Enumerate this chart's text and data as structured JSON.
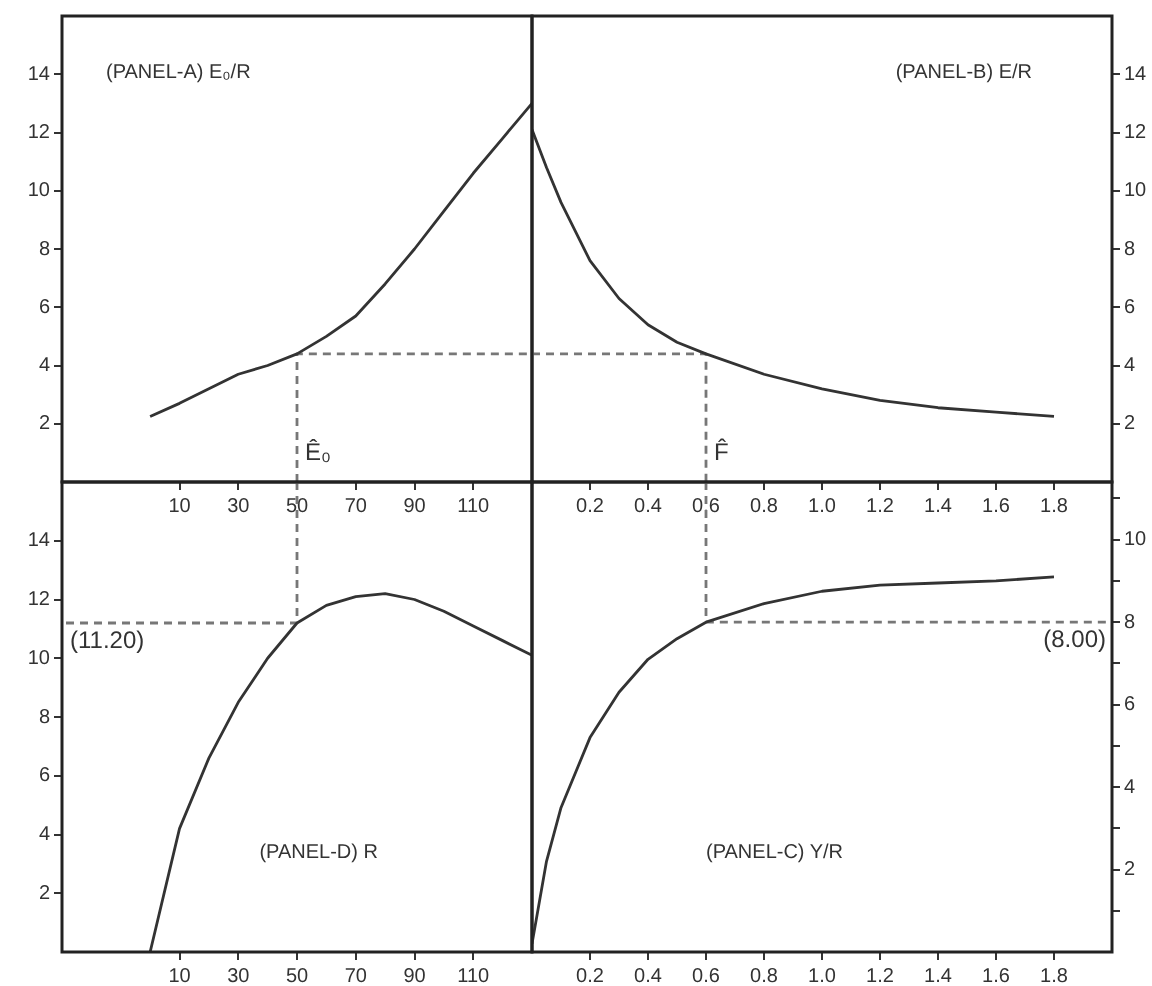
{
  "chart_data": [
    {
      "type": "line",
      "xlim": [
        -30,
        130
      ],
      "ylim": [
        0,
        16
      ],
      "xticks": [
        10,
        30,
        50,
        70,
        90,
        110
      ],
      "yticks": [
        2,
        4,
        6,
        8,
        10,
        12,
        14
      ],
      "grid": false,
      "legend": false,
      "marker": "none",
      "annotations": [
        "(PANEL-A) E₀/R",
        {
          "text": "Ê₀",
          "x": 50,
          "y": 1.6
        }
      ],
      "series": [
        {
          "color": "#333333",
          "x": [
            0,
            10,
            20,
            30,
            40,
            50,
            60,
            70,
            80,
            90,
            100,
            110,
            120,
            130
          ],
          "values": [
            2.25,
            2.7,
            3.2,
            3.7,
            4.0,
            4.4,
            5.0,
            5.7,
            6.8,
            8.0,
            9.3,
            10.6,
            11.8,
            13.0
          ]
        },
        {
          "color": "#777777",
          "line_style": "dashed",
          "x": [
            50,
            50,
            130
          ],
          "values": [
            0,
            4.4,
            4.4
          ]
        }
      ]
    },
    {
      "type": "line",
      "xlim": [
        0,
        2
      ],
      "ylim": [
        0,
        16
      ],
      "xticks": [
        0.2,
        0.4,
        0.6,
        0.8,
        {
          "value": 1,
          "label": "1.0"
        },
        1.2,
        1.4,
        1.6,
        1.8
      ],
      "yticks": [
        2,
        4,
        6,
        8,
        10,
        12,
        14
      ],
      "grid": false,
      "legend": false,
      "marker": "none",
      "annotations": [
        "(PANEL-B) E/R",
        {
          "text": "F̂",
          "x": 0.6,
          "y": 1.6
        }
      ],
      "series": [
        {
          "color": "#333333",
          "x": [
            0,
            0.05,
            0.1,
            0.2,
            0.3,
            0.4,
            0.5,
            0.6,
            0.8,
            1.0,
            1.2,
            1.4,
            1.6,
            1.8
          ],
          "values": [
            12.1,
            10.8,
            9.6,
            7.6,
            6.3,
            5.4,
            4.8,
            4.4,
            3.7,
            3.2,
            2.8,
            2.55,
            2.4,
            2.25
          ]
        },
        {
          "color": "#777777",
          "line_style": "dashed",
          "x": [
            0,
            0.6,
            0.6
          ],
          "values": [
            4.4,
            4.4,
            0
          ]
        }
      ]
    },
    {
      "type": "line",
      "xlim": [
        -30,
        130
      ],
      "ylim": [
        0,
        16
      ],
      "xticks": [
        10,
        30,
        50,
        70,
        90,
        110
      ],
      "yticks": [
        2,
        4,
        6,
        8,
        10,
        12,
        14
      ],
      "grid": false,
      "legend": false,
      "marker": "none",
      "annotations": [
        "(PANEL-D) R",
        {
          "text": "(11.20)",
          "x": -30,
          "y": 11.2
        }
      ],
      "series": [
        {
          "color": "#333333",
          "x": [
            0,
            10,
            20,
            30,
            40,
            50,
            60,
            70,
            80,
            90,
            100,
            110,
            120,
            130
          ],
          "values": [
            0,
            4.2,
            6.6,
            8.5,
            10.0,
            11.2,
            11.8,
            12.1,
            12.2,
            12.0,
            11.6,
            11.1,
            10.6,
            10.1
          ]
        },
        {
          "color": "#777777",
          "line_style": "dashed",
          "x": [
            50,
            50,
            -30
          ],
          "values": [
            16,
            11.2,
            11.2
          ]
        }
      ]
    },
    {
      "type": "line",
      "xlim": [
        0,
        2
      ],
      "ylim": [
        0,
        11.4
      ],
      "xticks": [
        0.2,
        0.4,
        0.6,
        0.8,
        {
          "value": 1,
          "label": "1.0"
        },
        1.2,
        1.4,
        1.6,
        1.8
      ],
      "yticks": [
        {
          "value": 1,
          "label": null
        },
        2,
        {
          "value": 3,
          "label": null
        },
        4,
        {
          "value": 5,
          "label": null
        },
        6,
        {
          "value": 7,
          "label": null
        },
        8,
        {
          "value": 9,
          "label": null
        },
        10,
        {
          "value": 11,
          "label": null
        }
      ],
      "grid": false,
      "legend": false,
      "marker": "none",
      "annotations": [
        "(PANEL-C) Y/R",
        {
          "text": "(8.00)",
          "x": 2,
          "y": 8
        }
      ],
      "series": [
        {
          "color": "#333333",
          "x": [
            0,
            0.05,
            0.1,
            0.2,
            0.3,
            0.4,
            0.5,
            0.6,
            0.8,
            1.0,
            1.2,
            1.4,
            1.6,
            1.8
          ],
          "values": [
            0.2,
            2.2,
            3.5,
            5.2,
            6.3,
            7.1,
            7.6,
            8.0,
            8.45,
            8.75,
            8.9,
            8.95,
            9.0,
            9.1
          ]
        },
        {
          "color": "#777777",
          "line_style": "dashed",
          "x": [
            0.6,
            0.6,
            2
          ],
          "values": [
            11.4,
            8,
            8
          ]
        }
      ]
    }
  ]
}
